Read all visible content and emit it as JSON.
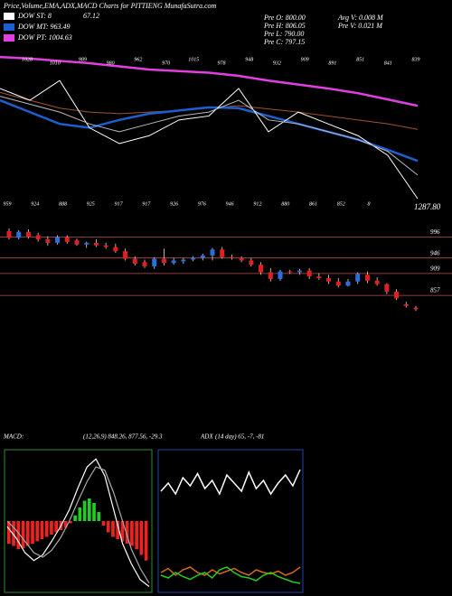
{
  "header": {
    "title": "Price,Volume,EMA,ADX,MACD Charts for PITTIENG MunafaSutra.com",
    "legend": [
      {
        "label": "DOW ST: 8",
        "value_text": "67.12",
        "color": "#ffffff"
      },
      {
        "label": "DOW MT: 963.49",
        "color": "#1e5fd0"
      },
      {
        "label": "DOW PT: 1004.63",
        "color": "#e040e0"
      }
    ],
    "info": [
      "Pre O: 800.00",
      "Pre H: 806.05",
      "Pre L: 790.00",
      "Pre C: 797.15"
    ],
    "info2": [
      "Avg V: 0.008 M",
      "Pre V: 0.021 M"
    ],
    "macd_label": "MACD:",
    "macd_params": "(12,26,9) 848.26, 877.56, -29.3",
    "adx_label": "ADX",
    "adx_params": "(14 day) 65, -7, -81"
  },
  "chart_data": [
    {
      "type": "line",
      "ylim": [
        850,
        1045
      ],
      "annotations": [
        "1028",
        "1010",
        "989",
        "980",
        "962",
        "970",
        "1015",
        "978",
        "948",
        "932",
        "909",
        "891",
        "851",
        "841",
        "839"
      ],
      "bottom_labels": [
        "959",
        "924",
        "888",
        "925",
        "917",
        "917",
        "926",
        "976",
        "946",
        "912",
        "880",
        "861",
        "852",
        "8"
      ],
      "last_label": "1287.80",
      "series": [
        {
          "color": "#e040e0",
          "width": 2.5,
          "values": [
            1030,
            1028,
            1025,
            1022,
            1018,
            1014,
            1012,
            1010,
            1006,
            1000,
            995,
            990,
            984,
            976,
            968
          ]
        },
        {
          "color": "#a0522d",
          "width": 1,
          "values": [
            985,
            975,
            965,
            960,
            958,
            960,
            962,
            965,
            968,
            964,
            960,
            955,
            950,
            945,
            938
          ]
        },
        {
          "color": "#1e5fd0",
          "width": 2.5,
          "values": [
            975,
            960,
            945,
            940,
            950,
            958,
            962,
            966,
            965,
            955,
            945,
            935,
            925,
            912,
            898
          ]
        },
        {
          "color": "#ffffff",
          "width": 1,
          "values": [
            990,
            975,
            1000,
            940,
            920,
            930,
            950,
            955,
            990,
            935,
            960,
            945,
            930,
            905,
            850
          ]
        },
        {
          "color": "#bbbbbb",
          "width": 1,
          "values": [
            980,
            970,
            960,
            945,
            935,
            945,
            955,
            960,
            975,
            950,
            945,
            935,
            925,
            910,
            880
          ]
        }
      ]
    },
    {
      "type": "candlestick",
      "ylim": [
        765,
        1044
      ],
      "up_color": "#2a6ee0",
      "down_color": "#e02020",
      "levels": [
        996,
        946,
        909,
        857
      ],
      "candles": [
        [
          1010,
          1016,
          990,
          994
        ],
        [
          994,
          1012,
          990,
          1008
        ],
        [
          1008,
          1014,
          992,
          996
        ],
        [
          1000,
          1006,
          985,
          990
        ],
        [
          990,
          998,
          975,
          982
        ],
        [
          982,
          1000,
          978,
          995
        ],
        [
          995,
          1000,
          980,
          984
        ],
        [
          988,
          992,
          975,
          978
        ],
        [
          978,
          985,
          970,
          982
        ],
        [
          982,
          990,
          972,
          976
        ],
        [
          976,
          982,
          968,
          972
        ],
        [
          972,
          980,
          958,
          962
        ],
        [
          962,
          968,
          940,
          944
        ],
        [
          944,
          950,
          928,
          932
        ],
        [
          936,
          942,
          922,
          926
        ],
        [
          926,
          948,
          920,
          944
        ],
        [
          944,
          968,
          928,
          934
        ],
        [
          934,
          946,
          930,
          940
        ],
        [
          938,
          946,
          932,
          942
        ],
        [
          942,
          950,
          938,
          946
        ],
        [
          946,
          956,
          940,
          952
        ],
        [
          952,
          970,
          940,
          966
        ],
        [
          966,
          972,
          944,
          948
        ],
        [
          948,
          954,
          942,
          946
        ],
        [
          946,
          950,
          936,
          940
        ],
        [
          940,
          946,
          926,
          930
        ],
        [
          930,
          936,
          906,
          912
        ],
        [
          912,
          922,
          890,
          896
        ],
        [
          896,
          918,
          892,
          914
        ],
        [
          914,
          918,
          908,
          912
        ],
        [
          912,
          920,
          906,
          916
        ],
        [
          916,
          922,
          896,
          902
        ],
        [
          902,
          910,
          894,
          898
        ],
        [
          898,
          906,
          884,
          890
        ],
        [
          890,
          898,
          876,
          880
        ],
        [
          880,
          896,
          878,
          890
        ],
        [
          890,
          912,
          884,
          908
        ],
        [
          906,
          914,
          886,
          892
        ],
        [
          892,
          900,
          880,
          884
        ],
        [
          884,
          886,
          860,
          866
        ],
        [
          866,
          872,
          846,
          850
        ],
        [
          836,
          842,
          828,
          832
        ],
        [
          828,
          832,
          820,
          824
        ]
      ]
    },
    {
      "type": "bar",
      "ylim": [
        -60,
        60
      ],
      "pos_color": "#22cc22",
      "neg_color": "#ee2222",
      "values": [
        -20,
        -22,
        -25,
        -24,
        -22,
        -20,
        -18,
        -16,
        -14,
        -12,
        -10,
        -8,
        -6,
        -2,
        5,
        12,
        18,
        20,
        16,
        8,
        -4,
        -10,
        -14,
        -16,
        -18,
        -20,
        -22,
        -25,
        -30,
        -35
      ],
      "series": [
        {
          "color": "#ffffff",
          "values": [
            -5,
            -15,
            -28,
            -35,
            -30,
            -18,
            -5,
            10,
            30,
            48,
            55,
            40,
            10,
            -20,
            -38,
            -52,
            -58
          ]
        },
        {
          "color": "#aaaaaa",
          "values": [
            0,
            -8,
            -18,
            -28,
            -32,
            -26,
            -15,
            0,
            18,
            35,
            48,
            45,
            25,
            0,
            -25,
            -42,
            -55
          ]
        }
      ]
    },
    {
      "type": "line",
      "ylim": [
        0,
        100
      ],
      "series": [
        {
          "color": "#ffffff",
          "values": [
            72,
            78,
            70,
            82,
            76,
            85,
            74,
            80,
            70,
            84,
            78,
            72,
            86,
            74,
            80,
            70,
            78,
            84,
            76,
            88
          ]
        },
        {
          "color": "#d2691e",
          "values": [
            12,
            15,
            10,
            14,
            16,
            12,
            10,
            14,
            11,
            13,
            15,
            12,
            10,
            14,
            12,
            11,
            13,
            10,
            12,
            16
          ]
        },
        {
          "color": "#22cc22",
          "values": [
            10,
            8,
            12,
            9,
            7,
            10,
            12,
            8,
            14,
            16,
            12,
            9,
            8,
            6,
            10,
            12,
            9,
            7,
            5,
            4
          ]
        }
      ]
    }
  ]
}
